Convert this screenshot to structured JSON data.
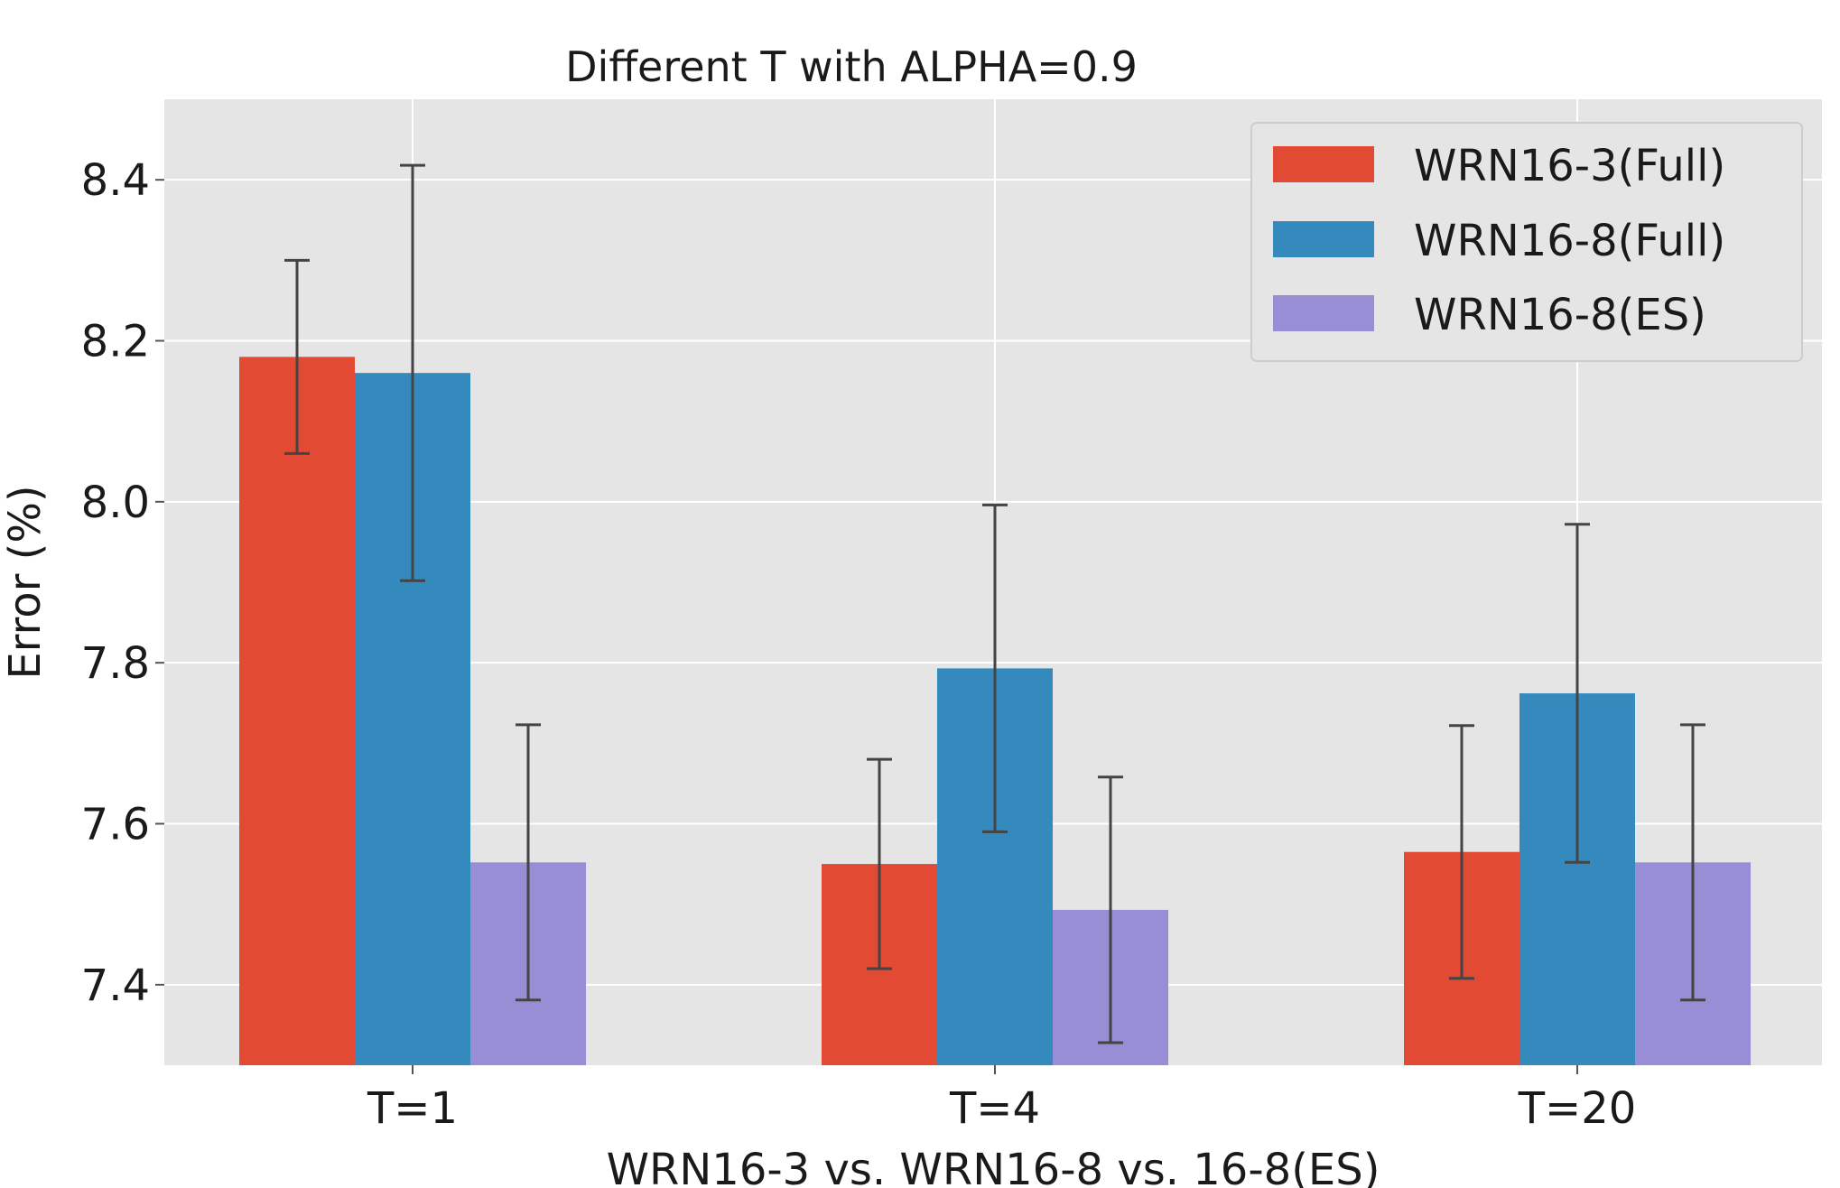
{
  "chart_data": {
    "type": "bar",
    "title": "Different T with ALPHA=0.9",
    "xlabel": "WRN16-3 vs. WRN16-8 vs. 16-8(ES)",
    "ylabel": "Error (%)",
    "categories": [
      "T=1",
      "T=4",
      "T=20"
    ],
    "ylim": [
      7.3,
      8.5
    ],
    "yticks": [
      7.4,
      7.6,
      7.8,
      8.0,
      8.2,
      8.4
    ],
    "ytick_labels": [
      "7.4",
      "7.6",
      "7.8",
      "8.0",
      "8.2",
      "8.4"
    ],
    "grid": true,
    "legend_position": "top-right",
    "series": [
      {
        "name": "WRN16-3(Full)",
        "color": "#e24a33",
        "values": [
          8.18,
          7.55,
          7.565
        ],
        "errors": [
          0.12,
          0.13,
          0.157
        ]
      },
      {
        "name": "WRN16-8(Full)",
        "color": "#348abd",
        "values": [
          8.16,
          7.793,
          7.762
        ],
        "errors": [
          0.258,
          0.203,
          0.21
        ]
      },
      {
        "name": "WRN16-8(ES)",
        "color": "#988ed5",
        "values": [
          7.552,
          7.493,
          7.552
        ],
        "errors": [
          0.171,
          0.165,
          0.171
        ]
      }
    ]
  }
}
